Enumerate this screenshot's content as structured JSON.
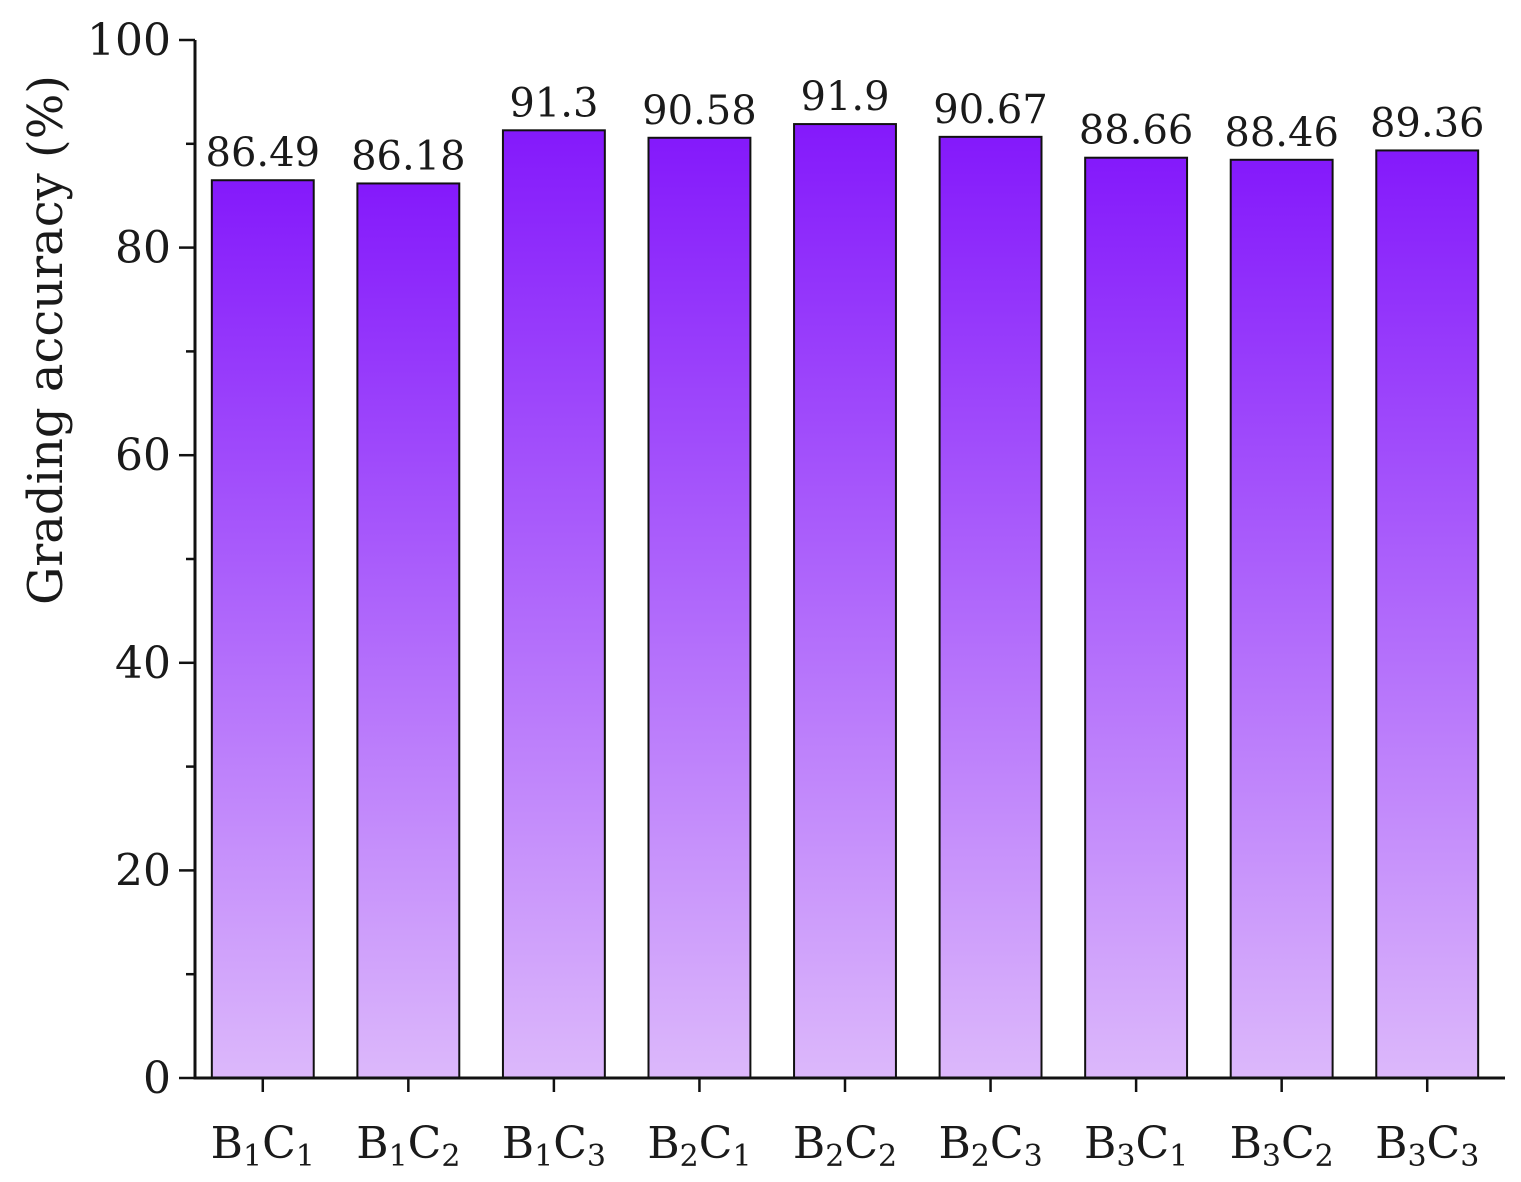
{
  "chart_data": {
    "type": "bar",
    "title": "",
    "ylabel": "Grading accuracy (%)",
    "xlabel": "",
    "ylim": [
      0,
      100
    ],
    "yticks": [
      0,
      20,
      40,
      60,
      80,
      100
    ],
    "categories": [
      {
        "base1": "B",
        "sub1": "1",
        "base2": "C",
        "sub2": "1"
      },
      {
        "base1": "B",
        "sub1": "1",
        "base2": "C",
        "sub2": "2"
      },
      {
        "base1": "B",
        "sub1": "1",
        "base2": "C",
        "sub2": "3"
      },
      {
        "base1": "B",
        "sub1": "2",
        "base2": "C",
        "sub2": "1"
      },
      {
        "base1": "B",
        "sub1": "2",
        "base2": "C",
        "sub2": "2"
      },
      {
        "base1": "B",
        "sub1": "2",
        "base2": "C",
        "sub2": "3"
      },
      {
        "base1": "B",
        "sub1": "3",
        "base2": "C",
        "sub2": "1"
      },
      {
        "base1": "B",
        "sub1": "3",
        "base2": "C",
        "sub2": "2"
      },
      {
        "base1": "B",
        "sub1": "3",
        "base2": "C",
        "sub2": "3"
      }
    ],
    "values": [
      86.49,
      86.18,
      91.3,
      90.58,
      91.9,
      90.67,
      88.66,
      88.46,
      89.36
    ],
    "value_labels": [
      "86.49",
      "86.18",
      "91.3",
      "90.58",
      "91.9",
      "90.67",
      "88.66",
      "88.46",
      "89.36"
    ],
    "bar_gradient": {
      "top": "#8419fb",
      "bottom": "#dcb8fb"
    },
    "grid": false,
    "legend": "none"
  }
}
